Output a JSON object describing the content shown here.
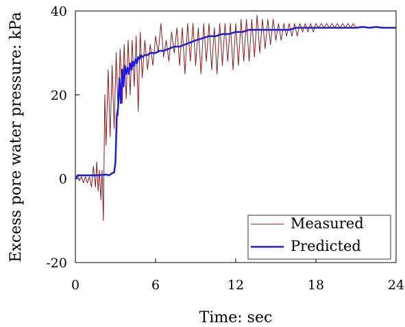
{
  "chart_data": {
    "type": "line",
    "title": "",
    "xlabel": "Time: sec",
    "ylabel": "Excess pore water pressure: kPa",
    "xlim": [
      0,
      24
    ],
    "ylim": [
      -20,
      40
    ],
    "xticks": [
      0,
      6,
      12,
      18,
      24
    ],
    "yticks": [
      -20,
      0,
      20,
      40
    ],
    "xtick_labels": [
      "0",
      "6",
      "12",
      "18",
      "24"
    ],
    "ytick_labels": [
      "-20",
      "0",
      "20",
      "40"
    ],
    "grid": false,
    "legend_position": "bottom-right",
    "series": [
      {
        "name": "Measured",
        "color": "#8b1a1a",
        "x": [
          0,
          0.15,
          0.3,
          0.45,
          0.6,
          0.75,
          0.9,
          1.05,
          1.2,
          1.35,
          1.5,
          1.6,
          1.7,
          1.8,
          1.9,
          2.0,
          2.1,
          2.2,
          2.3,
          2.45,
          2.6,
          2.75,
          2.9,
          3.05,
          3.2,
          3.35,
          3.5,
          3.65,
          3.8,
          3.95,
          4.1,
          4.25,
          4.4,
          4.55,
          4.7,
          4.85,
          5.0,
          5.2,
          5.4,
          5.6,
          5.8,
          6.0,
          6.2,
          6.4,
          6.6,
          6.8,
          7.0,
          7.2,
          7.4,
          7.6,
          7.8,
          8.0,
          8.2,
          8.4,
          8.6,
          8.8,
          9.0,
          9.2,
          9.4,
          9.6,
          9.8,
          10.0,
          10.2,
          10.4,
          10.6,
          10.8,
          11.0,
          11.2,
          11.4,
          11.6,
          11.8,
          12.0,
          12.2,
          12.4,
          12.6,
          12.8,
          13.0,
          13.2,
          13.4,
          13.6,
          13.8,
          14.0,
          14.2,
          14.4,
          14.6,
          14.8,
          15.0,
          15.2,
          15.4,
          15.6,
          15.8,
          16.0,
          16.2,
          16.4,
          16.6,
          16.8,
          17.0,
          17.2,
          17.4,
          17.6,
          17.8,
          18.0,
          18.2,
          18.4,
          18.6,
          18.8,
          19.0,
          19.2,
          19.4,
          19.6,
          19.8,
          20.0,
          20.2,
          20.4,
          20.6,
          20.8,
          21.0
        ],
        "values": [
          0,
          1,
          -0.5,
          0.5,
          -1,
          0.5,
          -1,
          0.5,
          -2,
          3,
          -2,
          4,
          -3,
          2,
          -5,
          2,
          -10,
          20,
          8,
          26,
          10,
          27,
          12,
          30,
          15,
          31,
          18,
          32,
          19,
          33,
          20,
          33,
          22,
          34,
          16,
          35,
          24,
          33,
          26,
          32,
          27,
          34,
          30,
          37,
          29,
          33,
          28,
          35,
          30,
          36,
          27,
          36,
          25,
          37,
          28,
          37,
          27,
          36,
          25,
          37,
          28,
          37,
          26,
          36,
          25,
          37,
          27,
          37,
          28,
          37,
          26,
          37,
          27,
          38,
          28,
          38,
          28,
          38,
          29,
          39,
          30,
          38,
          31,
          38,
          32,
          38,
          33,
          37,
          33,
          37,
          34,
          37,
          34,
          37,
          34,
          37,
          35,
          37,
          35,
          37,
          35,
          37,
          36,
          37,
          36,
          37,
          36,
          37,
          36,
          37,
          36,
          37,
          36,
          37,
          36,
          37,
          36
        ]
      },
      {
        "name": "Predicted",
        "color": "#1a1aee",
        "x": [
          0,
          0.2,
          0.5,
          1.0,
          1.5,
          2.0,
          2.3,
          2.5,
          2.7,
          2.9,
          3.0,
          3.1,
          3.2,
          3.3,
          3.4,
          3.5,
          3.6,
          3.7,
          3.8,
          3.9,
          4.0,
          4.1,
          4.2,
          4.3,
          4.4,
          4.5,
          4.6,
          4.7,
          4.8,
          4.9,
          5.0,
          5.2,
          5.4,
          5.6,
          5.8,
          6.0,
          6.3,
          6.6,
          7.0,
          7.4,
          7.8,
          8.2,
          8.6,
          9.0,
          9.5,
          10.0,
          10.5,
          11.0,
          11.5,
          12.0,
          12.5,
          13.0,
          13.5,
          14.0,
          14.5,
          15.0,
          15.5,
          16.0,
          16.5,
          17.0,
          17.5,
          18.0,
          18.5,
          19.0,
          19.5,
          20.0,
          20.5,
          21.0,
          21.5,
          22.0,
          22.5,
          23.0,
          23.5,
          24.0
        ],
        "values": [
          0,
          0.8,
          0.8,
          0.8,
          0.8,
          0.9,
          1.0,
          0.8,
          1.2,
          1.5,
          4,
          15,
          17,
          24,
          18,
          26,
          22,
          27,
          25,
          26.5,
          25,
          27.5,
          26,
          28,
          27,
          28.5,
          27.5,
          29,
          28.5,
          29.5,
          29,
          29.5,
          29.5,
          30,
          30,
          30,
          30.5,
          30.5,
          31,
          31.5,
          31.5,
          32,
          32.5,
          33,
          33.5,
          34,
          34,
          34.5,
          34.5,
          35,
          35,
          35.5,
          35.5,
          35.5,
          35.5,
          35.5,
          35.5,
          35.5,
          36,
          36,
          36,
          36,
          36,
          36,
          36,
          36,
          36,
          36,
          36.2,
          36,
          36.2,
          36,
          36,
          36
        ]
      }
    ]
  },
  "legend": {
    "measured_label": "Measured",
    "predicted_label": "Predicted"
  }
}
